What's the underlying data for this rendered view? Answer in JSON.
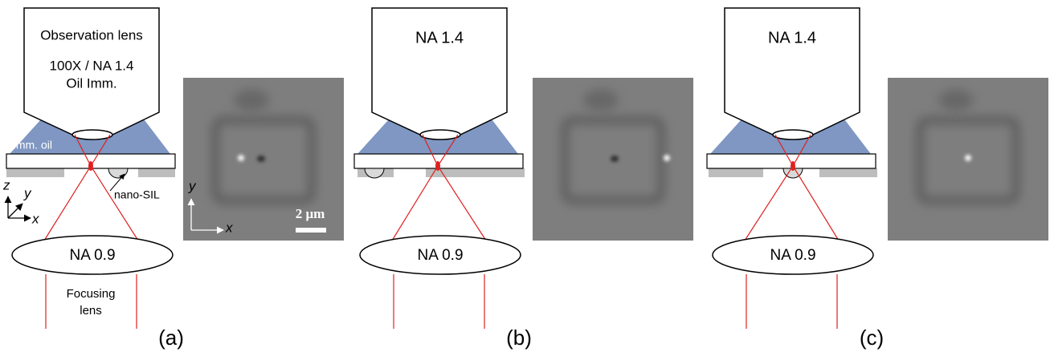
{
  "panels": [
    {
      "label": "(a)",
      "objective_lines": [
        "Observation lens",
        "100X / NA 1.4",
        "Oil Imm."
      ],
      "oil_label": "Imm. oil",
      "sil_label": "nano-SIL",
      "axes": [
        "z",
        "y",
        "x"
      ],
      "focusing_lens": "NA 0.9",
      "focusing_label": [
        "Focusing",
        "lens"
      ],
      "image_axes": [
        "y",
        "x"
      ],
      "scale_bar": "2 μm"
    },
    {
      "label": "(b)",
      "objective_lines": [
        "NA 1.4"
      ],
      "focusing_lens": "NA 0.9"
    },
    {
      "label": "(c)",
      "objective_lines": [
        "NA 1.4"
      ],
      "focusing_lens": "NA 0.9"
    }
  ]
}
